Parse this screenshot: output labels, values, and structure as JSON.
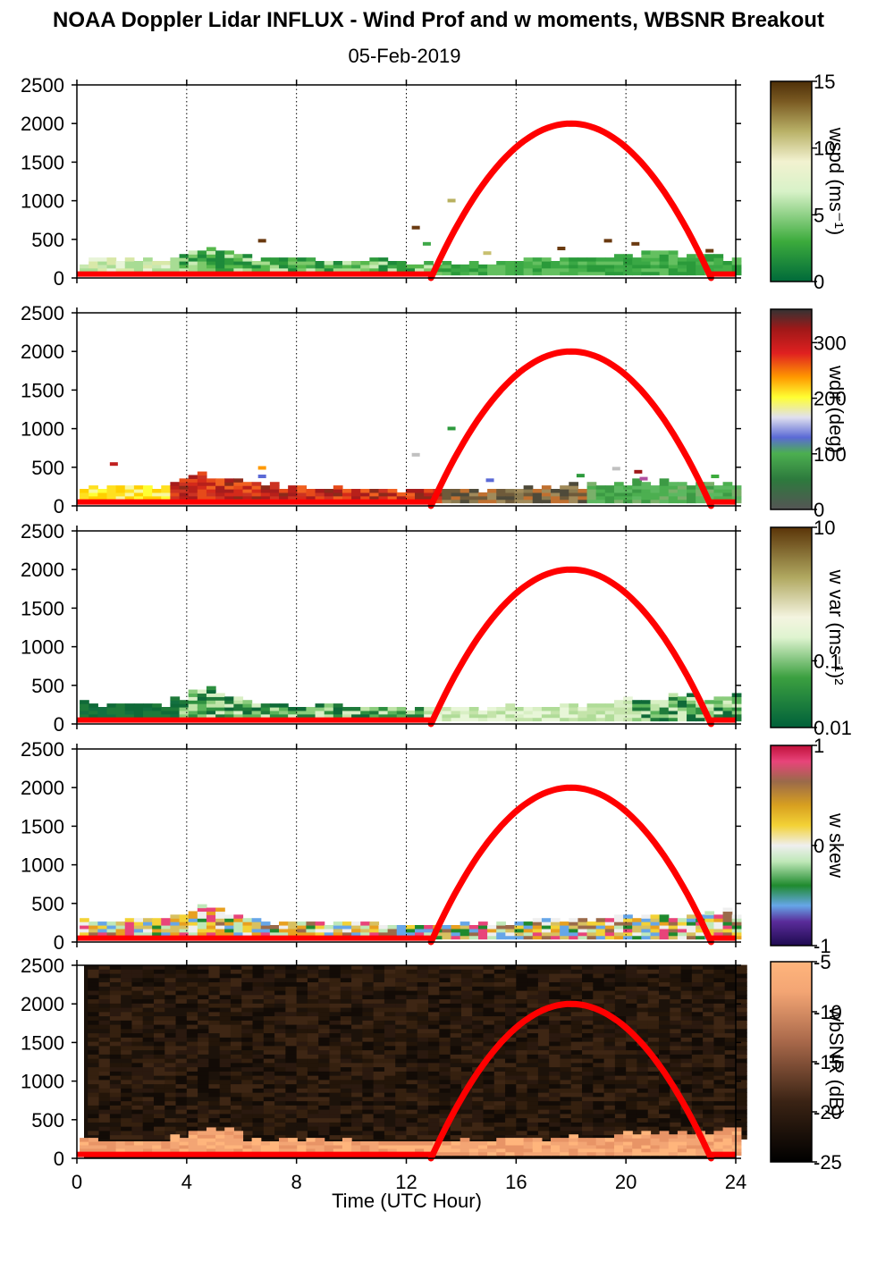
{
  "title": "NOAA Doppler Lidar INFLUX - Wind Prof and w moments, WBSNR Breakout",
  "subtitle": "05-Feb-2019",
  "xlabel": "Time (UTC Hour)",
  "colors": {
    "daylight_curve": "#ff0000",
    "surface_line": "#ff0000"
  },
  "chart_data": [
    {
      "type": "heatmap",
      "panel": "wspd",
      "xlim": [
        0,
        24
      ],
      "ylim": [
        0,
        2500
      ],
      "x_ticks": [
        "0",
        "4",
        "8",
        "12",
        "16",
        "20",
        "24"
      ],
      "y_ticks": [
        "0",
        "500",
        "1000",
        "1500",
        "2000",
        "2500"
      ],
      "grid_x": [
        4,
        8,
        12,
        16,
        20,
        24
      ],
      "daylight_curve": {
        "start": 12.9,
        "end": 23.1,
        "peak_x": 18.0,
        "peak": 2000
      },
      "data_top_m": [
        [
          0,
          200
        ],
        [
          1,
          220
        ],
        [
          2,
          230
        ],
        [
          3,
          200
        ],
        [
          4,
          330
        ],
        [
          5,
          350
        ],
        [
          6,
          250
        ],
        [
          7,
          240
        ],
        [
          8,
          220
        ],
        [
          9,
          210
        ],
        [
          10,
          200
        ],
        [
          11,
          210
        ],
        [
          12,
          200
        ],
        [
          13,
          170
        ],
        [
          14,
          180
        ],
        [
          15,
          190
        ],
        [
          16,
          200
        ],
        [
          17,
          210
        ],
        [
          18,
          230
        ],
        [
          19,
          250
        ],
        [
          20,
          280
        ],
        [
          21,
          300
        ],
        [
          22,
          280
        ],
        [
          23,
          260
        ],
        [
          24,
          220
        ]
      ],
      "colorbar": {
        "label": "wspd (ms⁻¹)",
        "ticks": [
          "0",
          "5",
          "10",
          "15"
        ],
        "range": [
          0,
          15
        ]
      }
    },
    {
      "type": "heatmap",
      "panel": "wdir",
      "xlim": [
        0,
        24
      ],
      "ylim": [
        0,
        2500
      ],
      "x_ticks": [
        "0",
        "4",
        "8",
        "12",
        "16",
        "20",
        "24"
      ],
      "y_ticks": [
        "0",
        "500",
        "1000",
        "1500",
        "2000",
        "2500"
      ],
      "grid_x": [
        4,
        8,
        12,
        16,
        20,
        24
      ],
      "daylight_curve": {
        "start": 12.9,
        "end": 23.1,
        "peak_x": 18.0,
        "peak": 2000
      },
      "data_top_m": [
        [
          0,
          200
        ],
        [
          1,
          230
        ],
        [
          2,
          240
        ],
        [
          3,
          220
        ],
        [
          4,
          360
        ],
        [
          5,
          380
        ],
        [
          6,
          260
        ],
        [
          7,
          250
        ],
        [
          8,
          230
        ],
        [
          9,
          210
        ],
        [
          10,
          200
        ],
        [
          11,
          210
        ],
        [
          12,
          200
        ],
        [
          13,
          180
        ],
        [
          14,
          190
        ],
        [
          15,
          200
        ],
        [
          16,
          210
        ],
        [
          17,
          230
        ],
        [
          18,
          250
        ],
        [
          19,
          270
        ],
        [
          20,
          290
        ],
        [
          21,
          300
        ],
        [
          22,
          290
        ],
        [
          23,
          280
        ],
        [
          24,
          260
        ]
      ],
      "colorbar": {
        "label": "wdir (deg)",
        "ticks": [
          "0",
          "100",
          "200",
          "300"
        ],
        "range": [
          0,
          360
        ]
      }
    },
    {
      "type": "heatmap",
      "panel": "wvar",
      "xlim": [
        0,
        24
      ],
      "ylim": [
        0,
        2500
      ],
      "x_ticks": [
        "0",
        "4",
        "8",
        "12",
        "16",
        "20",
        "24"
      ],
      "y_ticks": [
        "0",
        "500",
        "1000",
        "1500",
        "2000",
        "2500"
      ],
      "grid_x": [
        4,
        8,
        12,
        16,
        20,
        24
      ],
      "daylight_curve": {
        "start": 12.9,
        "end": 23.1,
        "peak_x": 18.0,
        "peak": 2000
      },
      "data_top_m": [
        [
          0,
          280
        ],
        [
          1,
          240
        ],
        [
          2,
          250
        ],
        [
          3,
          230
        ],
        [
          4,
          350
        ],
        [
          5,
          450
        ],
        [
          6,
          260
        ],
        [
          7,
          230
        ],
        [
          8,
          220
        ],
        [
          9,
          210
        ],
        [
          10,
          200
        ],
        [
          11,
          200
        ],
        [
          12,
          190
        ],
        [
          13,
          180
        ],
        [
          14,
          190
        ],
        [
          15,
          200
        ],
        [
          16,
          210
        ],
        [
          17,
          220
        ],
        [
          18,
          240
        ],
        [
          19,
          260
        ],
        [
          20,
          290
        ],
        [
          21,
          320
        ],
        [
          22,
          340
        ],
        [
          23,
          360
        ],
        [
          24,
          400
        ]
      ],
      "colorbar": {
        "label": "w var (ms⁻¹)²",
        "ticks": [
          "0.01",
          "0.1",
          "10"
        ],
        "scale": "log",
        "range": [
          0.01,
          10
        ]
      }
    },
    {
      "type": "heatmap",
      "panel": "wskew",
      "xlim": [
        0,
        24
      ],
      "ylim": [
        0,
        2500
      ],
      "x_ticks": [
        "0",
        "4",
        "8",
        "12",
        "16",
        "20",
        "24"
      ],
      "y_ticks": [
        "0",
        "500",
        "1000",
        "1500",
        "2000",
        "2500"
      ],
      "grid_x": [
        4,
        8,
        12,
        16,
        20,
        24
      ],
      "daylight_curve": {
        "start": 12.9,
        "end": 23.1,
        "peak_x": 18.0,
        "peak": 2000
      },
      "data_top_m": [
        [
          0,
          280
        ],
        [
          1,
          260
        ],
        [
          2,
          250
        ],
        [
          3,
          240
        ],
        [
          4,
          380
        ],
        [
          5,
          460
        ],
        [
          6,
          270
        ],
        [
          7,
          240
        ],
        [
          8,
          230
        ],
        [
          9,
          220
        ],
        [
          10,
          210
        ],
        [
          11,
          210
        ],
        [
          12,
          200
        ],
        [
          13,
          200
        ],
        [
          14,
          210
        ],
        [
          15,
          220
        ],
        [
          16,
          230
        ],
        [
          17,
          250
        ],
        [
          18,
          270
        ],
        [
          19,
          290
        ],
        [
          20,
          310
        ],
        [
          21,
          330
        ],
        [
          22,
          350
        ],
        [
          23,
          370
        ],
        [
          24,
          400
        ]
      ],
      "colorbar": {
        "label": "w skew",
        "ticks": [
          "-1",
          "0",
          "1"
        ],
        "range": [
          -1,
          1
        ]
      }
    },
    {
      "type": "heatmap",
      "panel": "wbsnr",
      "xlim": [
        0,
        24
      ],
      "ylim": [
        0,
        2500
      ],
      "x_ticks": [
        "0",
        "4",
        "8",
        "12",
        "16",
        "20",
        "24"
      ],
      "y_ticks": [
        "0",
        "500",
        "1000",
        "1500",
        "2000",
        "2500"
      ],
      "grid_x": [],
      "daylight_curve": {
        "start": 12.9,
        "end": 23.1,
        "peak_x": 18.0,
        "peak": 2000
      },
      "data_top_m": [
        [
          0,
          220
        ],
        [
          1,
          210
        ],
        [
          2,
          210
        ],
        [
          3,
          220
        ],
        [
          4,
          300
        ],
        [
          5,
          420
        ],
        [
          6,
          230
        ],
        [
          7,
          220
        ],
        [
          8,
          210
        ],
        [
          9,
          200
        ],
        [
          10,
          200
        ],
        [
          11,
          200
        ],
        [
          12,
          190
        ],
        [
          13,
          200
        ],
        [
          14,
          210
        ],
        [
          15,
          220
        ],
        [
          16,
          230
        ],
        [
          17,
          240
        ],
        [
          18,
          250
        ],
        [
          19,
          260
        ],
        [
          20,
          280
        ],
        [
          21,
          300
        ],
        [
          22,
          320
        ],
        [
          23,
          340
        ],
        [
          24,
          360
        ]
      ],
      "colorbar": {
        "label": "wbSNR (dB)",
        "ticks": [
          "-25",
          "-20",
          "-15",
          "-10",
          "-5"
        ],
        "range": [
          -25,
          -5
        ]
      }
    }
  ]
}
